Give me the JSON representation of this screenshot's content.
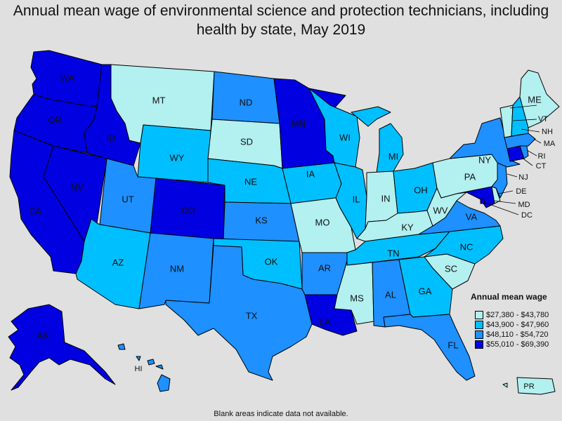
{
  "title": "Annual mean wage of environmental science and protection technicians, including health by state, May 2019",
  "colors": {
    "c1": "#b3f0f0",
    "c2": "#00bfff",
    "c3": "#1e90ff",
    "c4": "#0000e0"
  },
  "legend": {
    "title": "Annual mean wage",
    "items": [
      {
        "label": "$27,380 - $43,780",
        "color": "#b3f0f0"
      },
      {
        "label": "$43,900 - $47,960",
        "color": "#00bfff"
      },
      {
        "label": "$48,110 - $54,720",
        "color": "#1e90ff"
      },
      {
        "label": "$55,010 - $69,390",
        "color": "#0000e0"
      }
    ]
  },
  "states": {
    "WA": "c4",
    "OR": "c4",
    "CA": "c4",
    "NV": "c4",
    "ID": "c4",
    "MT": "c1",
    "WY": "c2",
    "UT": "c3",
    "AZ": "c2",
    "CO": "c4",
    "NM": "c3",
    "ND": "c3",
    "SD": "c1",
    "NE": "c2",
    "KS": "c3",
    "OK": "c2",
    "TX": "c3",
    "MN": "c4",
    "IA": "c2",
    "MO": "c1",
    "AR": "c3",
    "LA": "c4",
    "WI": "c2",
    "IL": "c2",
    "MI": "c2",
    "IN": "c1",
    "OH": "c2",
    "KY": "c1",
    "TN": "c2",
    "MS": "c1",
    "AL": "c3",
    "GA": "c2",
    "FL": "c3",
    "SC": "c1",
    "NC": "c2",
    "VA": "c3",
    "WV": "c1",
    "PA": "c1",
    "NY": "c3",
    "VT": "c1",
    "NH": "c2",
    "ME": "c1",
    "MA": "c3",
    "RI": "c3",
    "CT": "c4",
    "NJ": "c3",
    "DE": "c1",
    "MD": "c4",
    "DC": "c4",
    "AK": "c4",
    "HI": "c3",
    "PR": "c1"
  },
  "state_labels": {
    "WA": "WA",
    "OR": "OR",
    "CA": "CA",
    "NV": "NV",
    "ID": "ID",
    "MT": "MT",
    "WY": "WY",
    "UT": "UT",
    "AZ": "AZ",
    "CO": "CO",
    "NM": "NM",
    "ND": "ND",
    "SD": "SD",
    "NE": "NE",
    "KS": "KS",
    "OK": "OK",
    "TX": "TX",
    "MN": "MN",
    "IA": "IA",
    "MO": "MO",
    "AR": "AR",
    "LA": "LA",
    "WI": "WI",
    "IL": "IL",
    "MI": "MI",
    "IN": "IN",
    "OH": "OH",
    "KY": "KY",
    "TN": "TN",
    "MS": "MS",
    "AL": "AL",
    "GA": "GA",
    "FL": "FL",
    "SC": "SC",
    "NC": "NC",
    "VA": "VA",
    "WV": "WV",
    "PA": "PA",
    "NY": "NY",
    "VT": "VT",
    "NH": "NH",
    "ME": "ME",
    "MA": "MA",
    "RI": "RI",
    "CT": "CT",
    "NJ": "NJ",
    "DE": "DE",
    "MD": "MD",
    "DC": "DC",
    "AK": "AK",
    "HI": "HI",
    "PR": "PR"
  },
  "footnote": "Blank areas indicate data not available."
}
